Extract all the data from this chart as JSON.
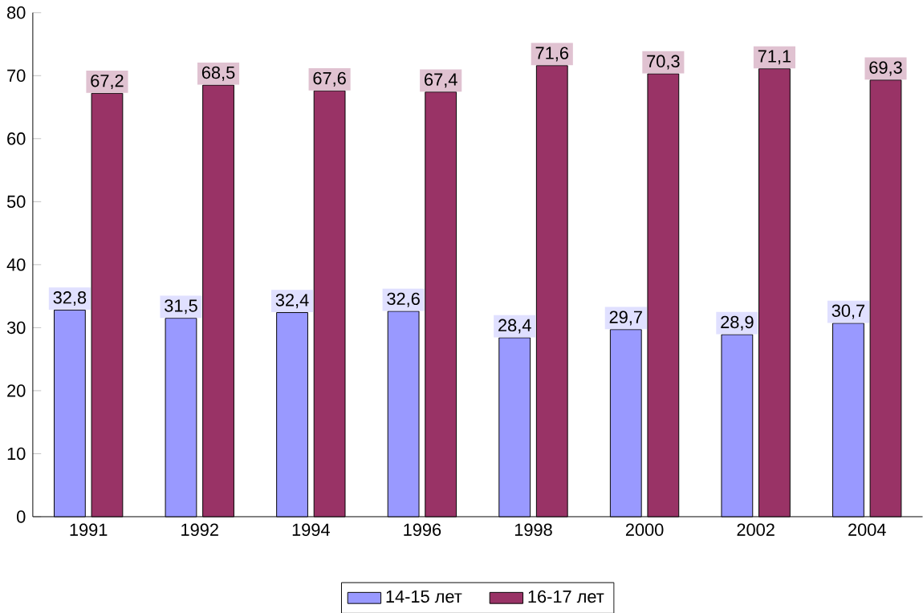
{
  "chart_data": {
    "type": "bar",
    "categories": [
      "1991",
      "1992",
      "1994",
      "1996",
      "1998",
      "2000",
      "2002",
      "2004"
    ],
    "series": [
      {
        "name": "14-15 лет",
        "color": "#9999ff",
        "values": [
          32.8,
          31.5,
          32.4,
          32.6,
          28.4,
          29.7,
          28.9,
          30.7
        ],
        "value_labels": [
          "32,8",
          "31,5",
          "32,4",
          "32,6",
          "28,4",
          "29,7",
          "28,9",
          "30,7"
        ]
      },
      {
        "name": "16-17 лет",
        "color": "#993366",
        "values": [
          67.2,
          68.5,
          67.6,
          67.4,
          71.6,
          70.3,
          71.1,
          69.3
        ],
        "value_labels": [
          "67,2",
          "68,5",
          "67,6",
          "67,4",
          "71,6",
          "70,3",
          "71,1",
          "69,3"
        ]
      }
    ],
    "ylim": [
      0,
      80
    ],
    "yticks": [
      0,
      10,
      20,
      30,
      40,
      50,
      60,
      70,
      80
    ],
    "grid": false,
    "legend": "bottom"
  }
}
